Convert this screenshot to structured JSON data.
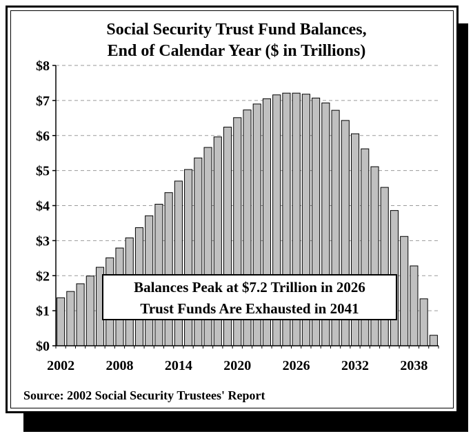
{
  "chart_data": {
    "type": "bar",
    "title": "Social Security Trust Fund Balances,",
    "subtitle": "End of Calendar Year ($ in Trillions)",
    "x": [
      2002,
      2003,
      2004,
      2005,
      2006,
      2007,
      2008,
      2009,
      2010,
      2011,
      2012,
      2013,
      2014,
      2015,
      2016,
      2017,
      2018,
      2019,
      2020,
      2021,
      2022,
      2023,
      2024,
      2025,
      2026,
      2027,
      2028,
      2029,
      2030,
      2031,
      2032,
      2033,
      2034,
      2035,
      2036,
      2037,
      2038,
      2039,
      2040
    ],
    "values": [
      1.37,
      1.55,
      1.77,
      1.99,
      2.24,
      2.51,
      2.79,
      3.08,
      3.37,
      3.71,
      4.04,
      4.37,
      4.7,
      5.03,
      5.36,
      5.66,
      5.96,
      6.24,
      6.51,
      6.73,
      6.9,
      7.05,
      7.16,
      7.21,
      7.21,
      7.18,
      7.07,
      6.93,
      6.72,
      6.43,
      6.05,
      5.62,
      5.11,
      4.52,
      3.86,
      3.12,
      2.28,
      1.34,
      0.3
    ],
    "x_tick_labels": [
      "2002",
      "2008",
      "2014",
      "2020",
      "2026",
      "2032",
      "2038"
    ],
    "y_tick_labels": [
      "$0",
      "$1",
      "$2",
      "$3",
      "$4",
      "$5",
      "$6",
      "$7",
      "$8"
    ],
    "ylim": [
      0,
      8
    ],
    "grid": "horizontal dashed",
    "bar_color": "#c0c0c0",
    "annotation": [
      "Balances Peak at $7.2 Trillion in 2026",
      "Trust Funds Are Exhausted in 2041"
    ],
    "source": "Source: 2002 Social Security Trustees' Report"
  }
}
